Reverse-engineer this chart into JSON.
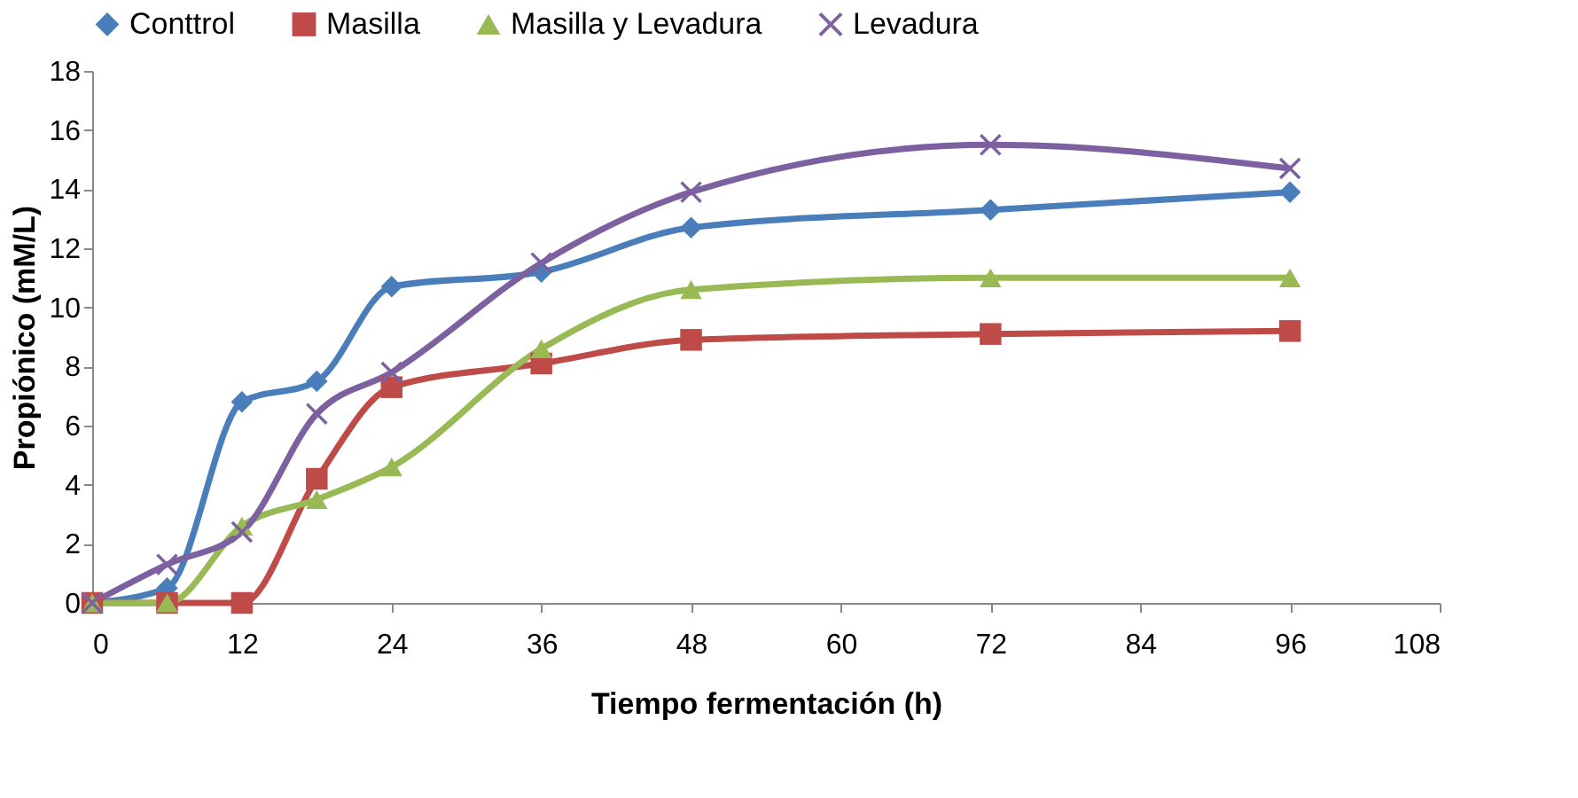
{
  "chart_data": {
    "type": "line",
    "xlabel": "Tiempo fermentación (h)",
    "ylabel": "Propiónico (mM/L)",
    "x": [
      0,
      6,
      12,
      18,
      24,
      36,
      48,
      72,
      96
    ],
    "xlim": [
      0,
      108
    ],
    "xticks": [
      0,
      12,
      24,
      36,
      48,
      60,
      72,
      84,
      96,
      108
    ],
    "ylim": [
      0,
      18
    ],
    "yticks": [
      0,
      2,
      4,
      6,
      8,
      10,
      12,
      14,
      16,
      18
    ],
    "grid": false,
    "legend": "top",
    "series": [
      {
        "name": "Conttrol",
        "color": "#4a7ebb",
        "marker": "diamond",
        "values": [
          0,
          0.5,
          6.8,
          7.5,
          10.7,
          11.2,
          12.7,
          13.3,
          13.9
        ]
      },
      {
        "name": "Masilla",
        "color": "#be4b48",
        "marker": "square",
        "values": [
          0,
          0,
          0,
          4.2,
          7.3,
          8.1,
          8.9,
          9.1,
          9.2
        ]
      },
      {
        "name": "Masilla y Levadura",
        "color": "#98b954",
        "marker": "triangle",
        "values": [
          0,
          0,
          2.6,
          3.5,
          4.6,
          8.6,
          10.6,
          11.0,
          11.0
        ]
      },
      {
        "name": "Levadura",
        "color": "#7d60a0",
        "marker": "cross",
        "values": [
          0,
          1.3,
          2.4,
          6.4,
          7.8,
          11.5,
          13.9,
          15.5,
          14.7
        ]
      }
    ]
  }
}
